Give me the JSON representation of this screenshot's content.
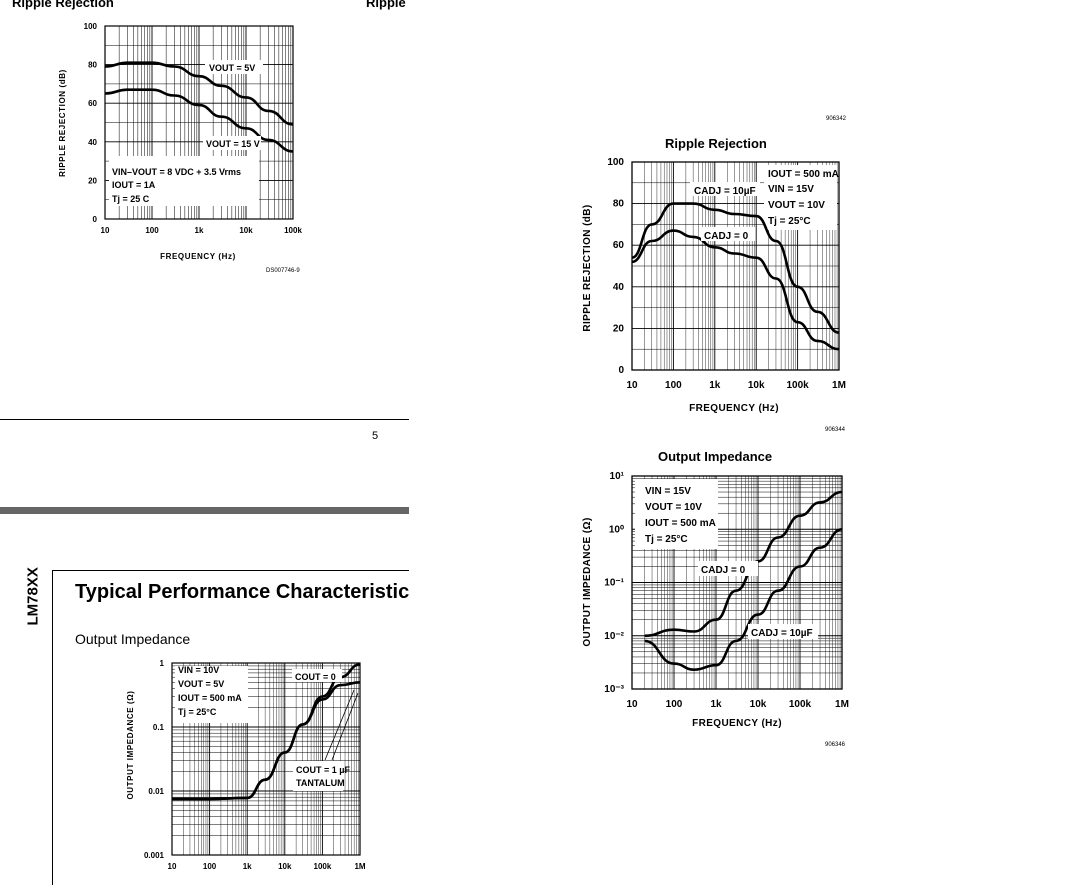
{
  "page": {
    "left_header": "Ripple Rejection",
    "left_header_right": "Ripple",
    "page_number": "5",
    "sidebar_label": "LM78XX",
    "section_title": "Typical Performance Characteristic"
  },
  "charts": {
    "c1": {
      "x_ticks": [
        "10",
        "100",
        "1k",
        "10k",
        "100k"
      ],
      "y_ticks": [
        "100",
        "80",
        "60",
        "40",
        "20",
        "0"
      ],
      "ylabel": "RIPPLE REJECTION (dB)",
      "xlabel": "FREQUENCY (Hz)",
      "code": "DS007746-9",
      "curve_labels": [
        "VOUT = 5V",
        "VOUT = 15 V"
      ],
      "conditions": [
        "VIN–VOUT = 8 VDC + 3.5 Vrms",
        "IOUT = 1A",
        "Tj = 25 C"
      ]
    },
    "c2": {
      "title": "Ripple Rejection",
      "code_top": "906342",
      "code": "906344",
      "x_ticks": [
        "10",
        "100",
        "1k",
        "10k",
        "100k",
        "1M"
      ],
      "y_ticks": [
        "100",
        "80",
        "60",
        "40",
        "20",
        "0"
      ],
      "ylabel": "RIPPLE REJECTION (dB)",
      "xlabel": "FREQUENCY (Hz)",
      "curve_labels": [
        "CADJ = 10µF",
        "CADJ = 0"
      ],
      "conditions": [
        "IOUT = 500 mA",
        "VIN = 15V",
        "VOUT = 10V",
        "Tj = 25°C"
      ]
    },
    "c3": {
      "title": "Output Impedance",
      "code": "906346",
      "x_ticks": [
        "10",
        "100",
        "1k",
        "10k",
        "100k",
        "1M"
      ],
      "y_ticks": [
        "10¹",
        "10⁰",
        "10⁻¹",
        "10⁻²",
        "10⁻³"
      ],
      "ylabel": "OUTPUT IMPEDANCE (Ω)",
      "xlabel": "FREQUENCY (Hz)",
      "curve_labels": [
        "CADJ = 0",
        "CADJ = 10µF"
      ],
      "conditions": [
        "VIN = 15V",
        "VOUT = 10V",
        "IOUT = 500 mA",
        "Tj = 25°C"
      ]
    },
    "c4": {
      "title": "Output Impedance",
      "x_ticks": [
        "10",
        "100",
        "1k",
        "10k",
        "100k",
        "1M"
      ],
      "y_ticks": [
        "1",
        "0.1",
        "0.01",
        "0.001"
      ],
      "ylabel": "OUTPUT IMPEDANCE (Ω)",
      "curve_labels": [
        "COUT = 0",
        "COUT = 1 µF",
        "TANTALUM"
      ],
      "conditions": [
        "VIN = 10V",
        "VOUT = 5V",
        "IOUT = 500 mA",
        "Tj = 25°C"
      ]
    }
  },
  "chart_data": [
    {
      "type": "line",
      "title": "Ripple Rejection",
      "xlabel": "FREQUENCY (Hz)",
      "ylabel": "RIPPLE REJECTION (dB)",
      "x_scale": "log",
      "xlim": [
        10,
        100000
      ],
      "ylim": [
        0,
        100
      ],
      "series": [
        {
          "name": "VOUT = 5V",
          "x": [
            10,
            30,
            100,
            300,
            1000,
            3000,
            10000,
            30000,
            100000
          ],
          "y": [
            79,
            81,
            81,
            79,
            74,
            69,
            63,
            56,
            49
          ]
        },
        {
          "name": "VOUT = 15 V",
          "x": [
            10,
            30,
            100,
            300,
            1000,
            3000,
            10000,
            30000,
            100000
          ],
          "y": [
            65,
            67,
            67,
            64,
            59,
            53,
            47,
            41,
            35
          ]
        }
      ]
    },
    {
      "type": "line",
      "title": "Ripple Rejection",
      "xlabel": "FREQUENCY (Hz)",
      "ylabel": "RIPPLE REJECTION (dB)",
      "x_scale": "log",
      "xlim": [
        10,
        1000000
      ],
      "ylim": [
        0,
        100
      ],
      "series": [
        {
          "name": "CADJ = 10µF",
          "x": [
            10,
            30,
            100,
            300,
            1000,
            3000,
            10000,
            30000,
            100000,
            300000,
            1000000
          ],
          "y": [
            54,
            70,
            80,
            80,
            77,
            75,
            74,
            62,
            40,
            28,
            18
          ]
        },
        {
          "name": "CADJ = 0",
          "x": [
            10,
            30,
            100,
            300,
            1000,
            3000,
            10000,
            30000,
            100000,
            300000,
            1000000
          ],
          "y": [
            52,
            62,
            67,
            64,
            59,
            56,
            54,
            44,
            23,
            14,
            10
          ]
        }
      ]
    },
    {
      "type": "line",
      "title": "Output Impedance",
      "xlabel": "FREQUENCY (Hz)",
      "ylabel": "OUTPUT IMPEDANCE (Ω)",
      "x_scale": "log",
      "y_scale": "log",
      "xlim": [
        10,
        1000000
      ],
      "ylim": [
        0.001,
        10
      ],
      "series": [
        {
          "name": "CADJ = 0",
          "x": [
            20,
            100,
            300,
            1000,
            3000,
            10000,
            30000,
            100000,
            300000,
            1000000
          ],
          "y": [
            0.01,
            0.013,
            0.012,
            0.02,
            0.07,
            0.25,
            0.7,
            1.8,
            3.2,
            5
          ]
        },
        {
          "name": "CADJ = 10µF",
          "x": [
            20,
            100,
            300,
            1000,
            3000,
            10000,
            30000,
            100000,
            300000,
            1000000
          ],
          "y": [
            0.008,
            0.003,
            0.0023,
            0.0028,
            0.008,
            0.025,
            0.07,
            0.2,
            0.45,
            1
          ]
        }
      ]
    },
    {
      "type": "line",
      "title": "Output Impedance",
      "ylabel": "OUTPUT IMPEDANCE (Ω)",
      "x_scale": "log",
      "y_scale": "log",
      "xlim": [
        10,
        1000000
      ],
      "ylim": [
        0.001,
        1
      ],
      "series": [
        {
          "name": "COUT = 0",
          "x": [
            10,
            100,
            1000,
            3000,
            10000,
            30000,
            100000,
            300000,
            1000000
          ],
          "y": [
            0.0075,
            0.0075,
            0.0078,
            0.015,
            0.04,
            0.11,
            0.3,
            0.6,
            0.95
          ]
        },
        {
          "name": "COUT = 1 µF TANTALUM",
          "x": [
            10,
            100,
            1000,
            3000,
            10000,
            30000,
            100000,
            300000,
            1000000
          ],
          "y": [
            0.0075,
            0.0075,
            0.0078,
            0.015,
            0.04,
            0.11,
            0.27,
            0.45,
            0.5
          ]
        }
      ]
    }
  ]
}
